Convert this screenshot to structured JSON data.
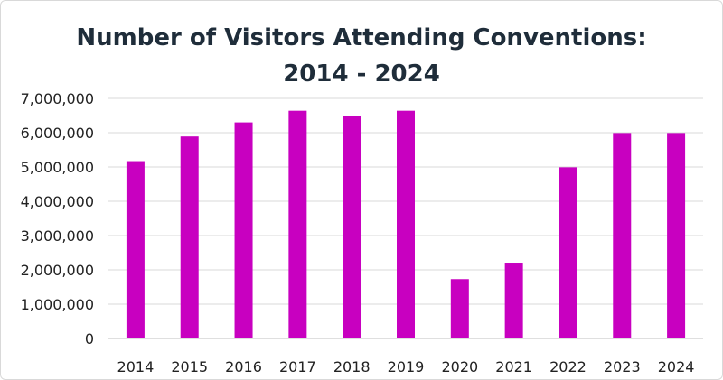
{
  "chart_data": {
    "type": "bar",
    "title_line1": "Number of Visitors Attending Conventions:",
    "title_line2": "2014 - 2024",
    "categories": [
      "2014",
      "2015",
      "2016",
      "2017",
      "2018",
      "2019",
      "2020",
      "2021",
      "2022",
      "2023",
      "2024"
    ],
    "values": [
      5170000,
      5890000,
      6300000,
      6640000,
      6500000,
      6640000,
      1730000,
      2210000,
      4990000,
      5990000,
      5990000
    ],
    "ylim": [
      0,
      7000000
    ],
    "yticks": [
      0,
      1000000,
      2000000,
      3000000,
      4000000,
      5000000,
      6000000,
      7000000
    ],
    "ytick_labels": [
      "0",
      "1,000,000",
      "2,000,000",
      "3,000,000",
      "4,000,000",
      "5,000,000",
      "6,000,000",
      "7,000,000"
    ],
    "xlabel": "",
    "ylabel": "",
    "grid": true,
    "legend": "none",
    "bar_color": "#c800c0",
    "grid_color": "#d9d9d9"
  }
}
